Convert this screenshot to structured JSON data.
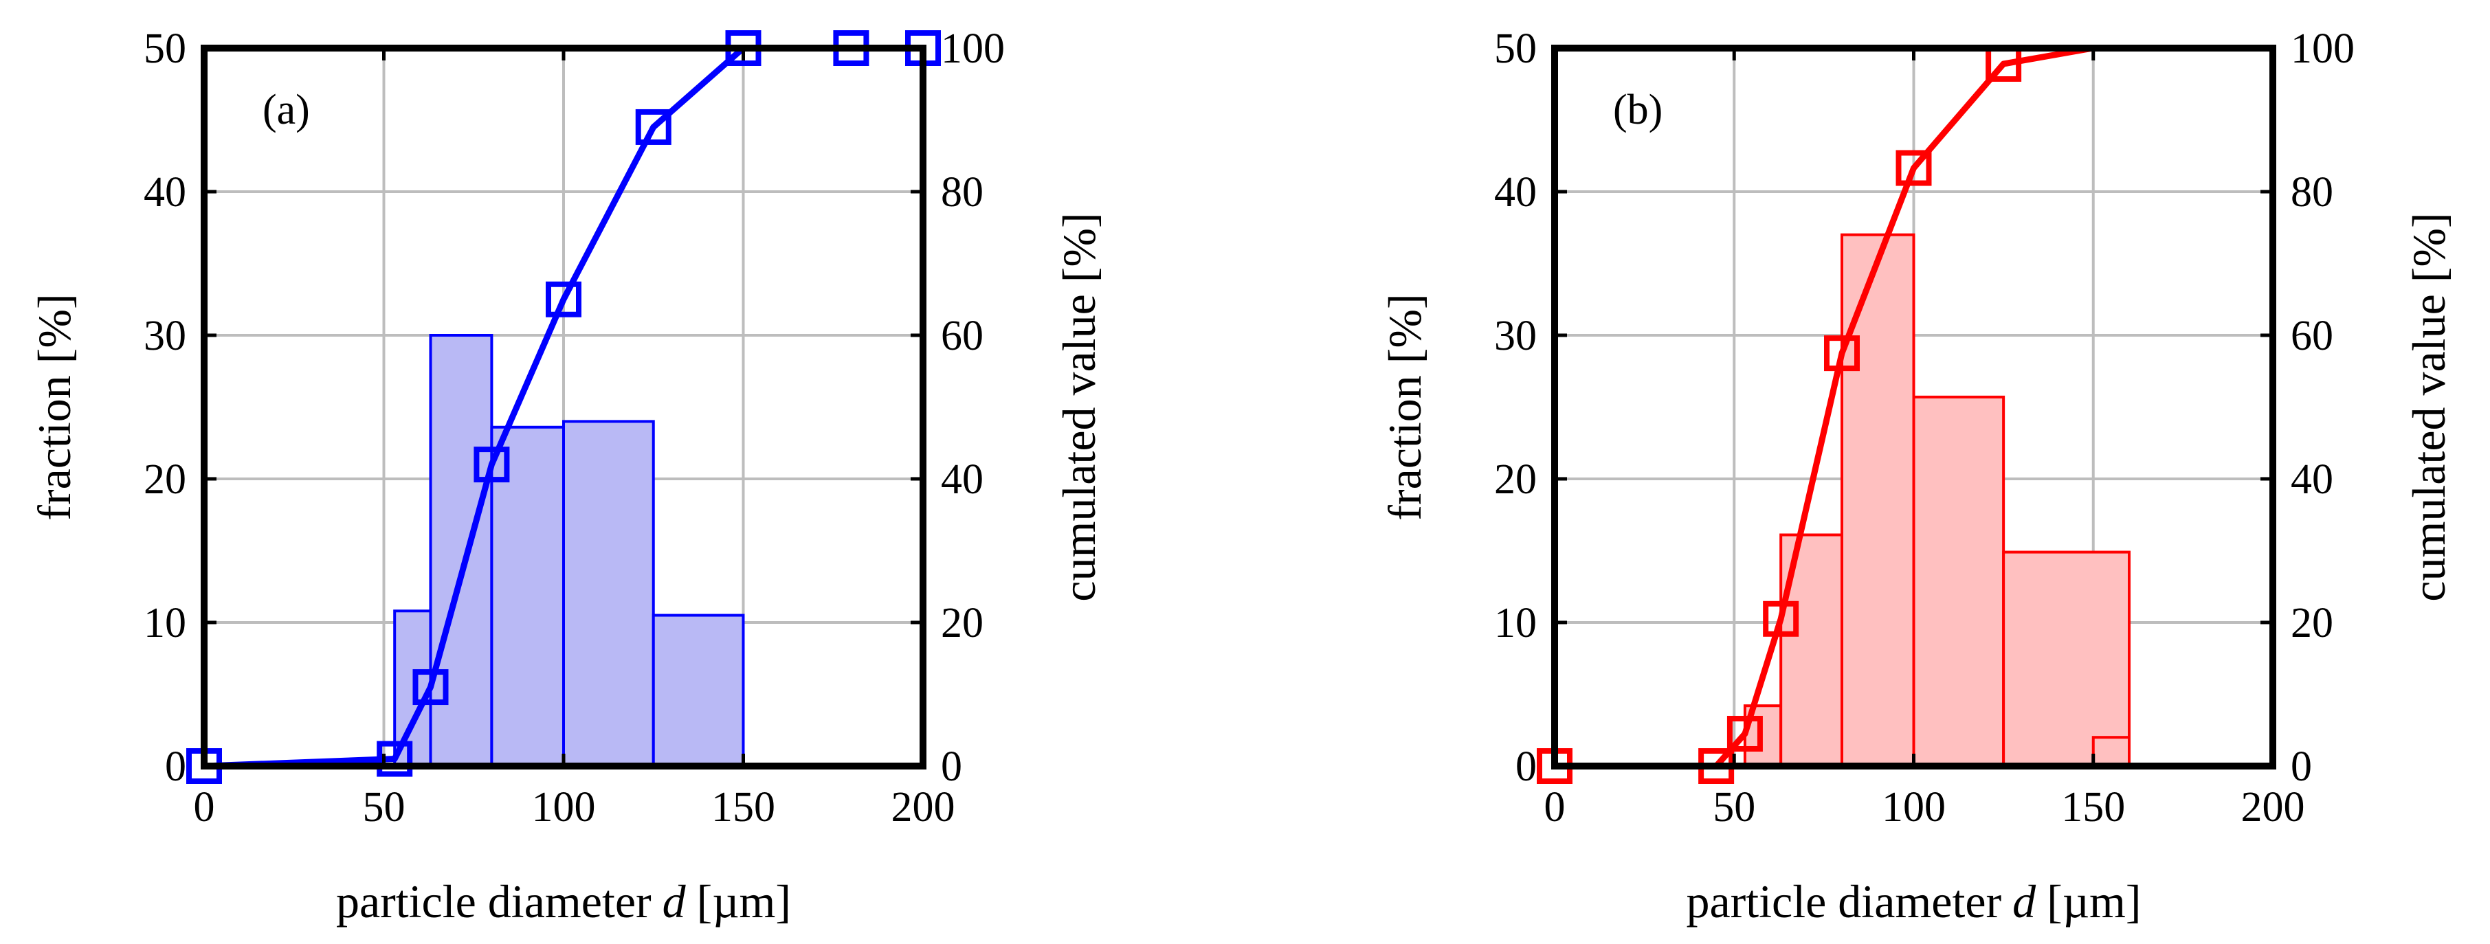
{
  "chart_data": [
    {
      "type": "bar",
      "panel_label": "(a)",
      "color": "#0000ff",
      "fill_color": "#b9b9f5",
      "xlabel": "particle diameter",
      "xlabel_var": "d",
      "xlabel_unit": "[µm]",
      "ylabel_left": "fraction [%]",
      "ylabel_right": "cumulated value [%]",
      "xlim": [
        0,
        200
      ],
      "ylim_left": [
        0,
        50
      ],
      "ylim_right": [
        0,
        100
      ],
      "xticks": [
        "0",
        "50",
        "100",
        "150",
        "200"
      ],
      "yticks_left": [
        "0",
        "10",
        "20",
        "30",
        "40",
        "50"
      ],
      "yticks_right": [
        "0",
        "20",
        "40",
        "60",
        "80",
        "100"
      ],
      "grid": true,
      "bins": [
        {
          "x0": 53,
          "x1": 63,
          "value": 10.8
        },
        {
          "x0": 63,
          "x1": 80,
          "value": 30.0
        },
        {
          "x0": 80,
          "x1": 100,
          "value": 23.6
        },
        {
          "x0": 100,
          "x1": 125,
          "value": 24.0
        },
        {
          "x0": 125,
          "x1": 150,
          "value": 10.5
        }
      ],
      "cumulative": {
        "x": [
          0,
          53,
          63,
          80,
          100,
          125,
          150,
          180,
          200
        ],
        "values": [
          0,
          1,
          11,
          42,
          65,
          89,
          100,
          100,
          100
        ]
      }
    },
    {
      "type": "bar",
      "panel_label": "(b)",
      "color": "#ff0000",
      "fill_color": "#ffc0c0",
      "xlabel": "particle diameter",
      "xlabel_var": "d",
      "xlabel_unit": "[µm]",
      "ylabel_left": "fraction [%]",
      "ylabel_right": "cumulated value [%]",
      "xlim": [
        0,
        200
      ],
      "ylim_left": [
        0,
        50
      ],
      "ylim_right": [
        0,
        100
      ],
      "xticks": [
        "0",
        "50",
        "100",
        "150",
        "200"
      ],
      "yticks_left": [
        "0",
        "10",
        "20",
        "30",
        "40",
        "50"
      ],
      "yticks_right": [
        "0",
        "20",
        "40",
        "60",
        "80",
        "100"
      ],
      "grid": true,
      "bins": [
        {
          "x0": 53,
          "x1": 63,
          "value": 4.2
        },
        {
          "x0": 63,
          "x1": 80,
          "value": 16.1
        },
        {
          "x0": 80,
          "x1": 100,
          "value": 37.0
        },
        {
          "x0": 100,
          "x1": 125,
          "value": 25.7
        },
        {
          "x0": 125,
          "x1": 160,
          "value": 14.9
        },
        {
          "x0": 160,
          "x1": 160,
          "value": 0
        },
        {
          "x0": 160,
          "x1": 160,
          "value": 0
        }
      ],
      "bins_extra": [
        {
          "x0": 150,
          "x1": 160,
          "value": 2.0
        }
      ],
      "cumulative": {
        "x": [
          0,
          45,
          53,
          63,
          80,
          100,
          125,
          150,
          200
        ],
        "values": [
          0,
          0,
          4.5,
          20.5,
          57.5,
          83.3,
          97.8,
          100,
          100
        ]
      },
      "cumulative_markers": [
        0,
        1,
        2,
        3,
        4,
        5,
        6
      ]
    }
  ]
}
